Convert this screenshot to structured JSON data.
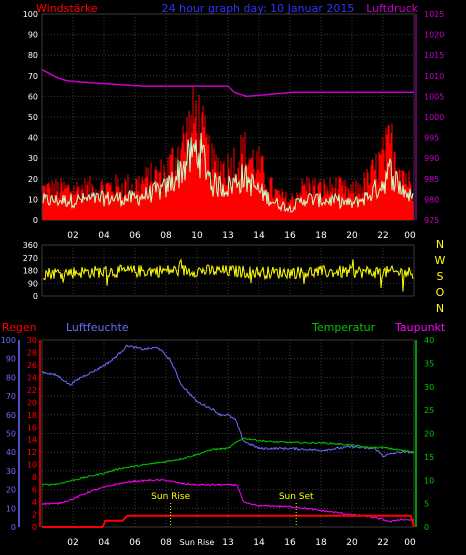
{
  "colors": {
    "background": "#000000",
    "wind_avg": "#c8ffc8",
    "wind_gust": "#ff0000",
    "pressure": "#c800c8",
    "direction": "#ffff00",
    "rain": "#ff0000",
    "humidity": "#6b6bff",
    "temperature": "#00c800",
    "dewpoint": "#ff00ff",
    "axis_label": "#ffffff",
    "sun_marker": "#ffff00"
  },
  "header": {
    "left_label": "Windstärke",
    "center_title": "24 hour graph day: 10 Januar 2015",
    "right_label": "Luftdruck"
  },
  "bottom_header": {
    "rain_label": "Regen",
    "humidity_label": "Luftfeuchte",
    "temperature_label": "Temperatur",
    "dewpoint_label": "Taupunkt"
  },
  "annotations": {
    "sun_rise": "Sun Rise",
    "sun_set": "Sun Set"
  },
  "chart_data": [
    {
      "type": "line",
      "panel": "wind",
      "ylim": [
        0,
        100
      ],
      "y_ticks": [
        0,
        10,
        20,
        30,
        40,
        50,
        60,
        70,
        80,
        90,
        100
      ],
      "y2lim": [
        975,
        1025
      ],
      "y2_ticks": [
        975,
        980,
        985,
        990,
        995,
        1000,
        1005,
        1010,
        1015,
        1020,
        1025
      ],
      "x_ticks": [
        "02",
        "04",
        "06",
        "08",
        "10",
        "13",
        "14",
        "16",
        "18",
        "20",
        "22",
        "00"
      ],
      "series": [
        {
          "name": "Windstärke",
          "x": [
            0,
            2,
            4,
            6,
            8,
            9,
            10,
            10.5,
            11,
            12,
            13,
            14,
            15,
            16,
            17,
            18,
            19,
            20,
            21,
            22,
            22.5,
            23,
            24
          ],
          "values": [
            10,
            10,
            11,
            11,
            16,
            26,
            36,
            30,
            18,
            17,
            22,
            15,
            9,
            6,
            11,
            10,
            10,
            8,
            12,
            19,
            25,
            18,
            10
          ]
        },
        {
          "name": "Windböen",
          "x": [
            0,
            2,
            4,
            6,
            8,
            9,
            10,
            10.5,
            11,
            12,
            13,
            14,
            15,
            16,
            17,
            18,
            19,
            20,
            21,
            22,
            22.5,
            23,
            24
          ],
          "values": [
            16,
            16,
            17,
            18,
            25,
            38,
            55,
            40,
            28,
            27,
            35,
            28,
            14,
            10,
            18,
            16,
            17,
            14,
            20,
            32,
            40,
            30,
            15
          ]
        },
        {
          "name": "Luftdruck",
          "x": [
            0,
            1,
            1.6,
            2.5,
            4.5,
            6.5,
            8.5,
            12,
            12.4,
            13.2,
            16.2,
            24
          ],
          "values": [
            1011.5,
            1009.5,
            1008.8,
            1008.5,
            1008,
            1007.5,
            1007.5,
            1007.5,
            1006,
            1005,
            1006,
            1006
          ]
        }
      ]
    },
    {
      "type": "line",
      "panel": "direction",
      "ylim": [
        0,
        360
      ],
      "y_ticks": [
        0,
        90,
        180,
        270,
        360
      ],
      "compass_labels": [
        "N",
        "W",
        "S",
        "O",
        "N"
      ],
      "x_ticks": [
        "02",
        "04",
        "06",
        "08",
        "10",
        "13",
        "14",
        "16",
        "18",
        "20",
        "22",
        "00"
      ],
      "series": [
        {
          "name": "Windrichtung",
          "x": [
            0,
            3,
            6,
            9,
            12,
            15,
            18,
            21,
            24
          ],
          "values": [
            160,
            170,
            175,
            180,
            175,
            165,
            170,
            170,
            165
          ]
        }
      ]
    },
    {
      "type": "line",
      "panel": "climate",
      "y_left_humidity": [
        0,
        100
      ],
      "y_left_humidity_ticks": [
        0,
        10,
        20,
        30,
        40,
        50,
        60,
        70,
        80,
        90,
        100
      ],
      "y_left_rain": [
        0,
        30
      ],
      "y_left_rain_ticks": [
        0,
        2,
        4,
        6,
        8,
        10,
        12,
        14,
        16,
        18,
        20,
        22,
        24,
        26,
        28,
        30
      ],
      "y_right_temp": [
        0,
        40
      ],
      "y_right_temp_ticks": [
        0,
        5,
        10,
        15,
        20,
        25,
        30,
        35,
        40
      ],
      "x_ticks": [
        "02",
        "04",
        "06",
        "08",
        "Sun Rise",
        "13",
        "14",
        "16",
        "18",
        "20",
        "22",
        "00"
      ],
      "series": [
        {
          "name": "Luftfeuchte",
          "axis": "humidity",
          "x": [
            0,
            1,
            1.8,
            2.5,
            3.5,
            4.5,
            5.5,
            6.5,
            7.5,
            8.3,
            9,
            10,
            11,
            11.5,
            12,
            12.5,
            13,
            14,
            16,
            18,
            20,
            21,
            21.5,
            22,
            23,
            24
          ],
          "values": [
            83,
            81,
            76,
            80,
            84,
            89,
            97,
            95,
            96,
            89,
            76,
            67,
            63,
            60,
            60,
            57,
            46,
            42,
            42,
            41,
            43,
            42,
            42,
            38,
            40,
            40
          ]
        },
        {
          "name": "Temperatur",
          "axis": "temp",
          "x": [
            0,
            1,
            2,
            3,
            4,
            5,
            6,
            7,
            8,
            9,
            10,
            11,
            12,
            12.7,
            13,
            14,
            15,
            16,
            17,
            18,
            19,
            20,
            21,
            22,
            23,
            24
          ],
          "values": [
            9,
            9.2,
            10,
            10.8,
            11.5,
            12.5,
            13,
            13.5,
            14,
            14.6,
            15.5,
            16.6,
            16.8,
            18.5,
            19,
            18.5,
            18.2,
            18.1,
            18,
            18,
            17.8,
            17.5,
            17,
            17,
            16.5,
            16
          ]
        },
        {
          "name": "Taupunkt",
          "axis": "temp",
          "x": [
            0,
            1,
            2,
            3,
            4,
            5,
            6,
            7,
            8,
            9,
            10,
            11,
            12.6,
            13,
            14,
            15,
            16,
            17,
            18,
            19,
            20,
            21,
            22,
            22.5,
            23,
            24
          ],
          "values": [
            5,
            5,
            6,
            7.5,
            8.5,
            9.3,
            9.8,
            10,
            10,
            9.3,
            9,
            9,
            9,
            5.2,
            4.5,
            4.5,
            4.3,
            4,
            3.5,
            3.1,
            2.6,
            2.3,
            1.6,
            1.1,
            1.6,
            1.5
          ]
        },
        {
          "name": "Regen",
          "axis": "rain",
          "x": [
            0,
            3.9,
            4.1,
            5.2,
            5.5,
            23.8,
            24
          ],
          "values": [
            0,
            0,
            1,
            1,
            1.8,
            1.8,
            0
          ]
        }
      ],
      "markers": [
        {
          "label": "Sun Rise",
          "x": 8.3
        },
        {
          "label": "Sun Set",
          "x": 16.4
        }
      ]
    }
  ]
}
